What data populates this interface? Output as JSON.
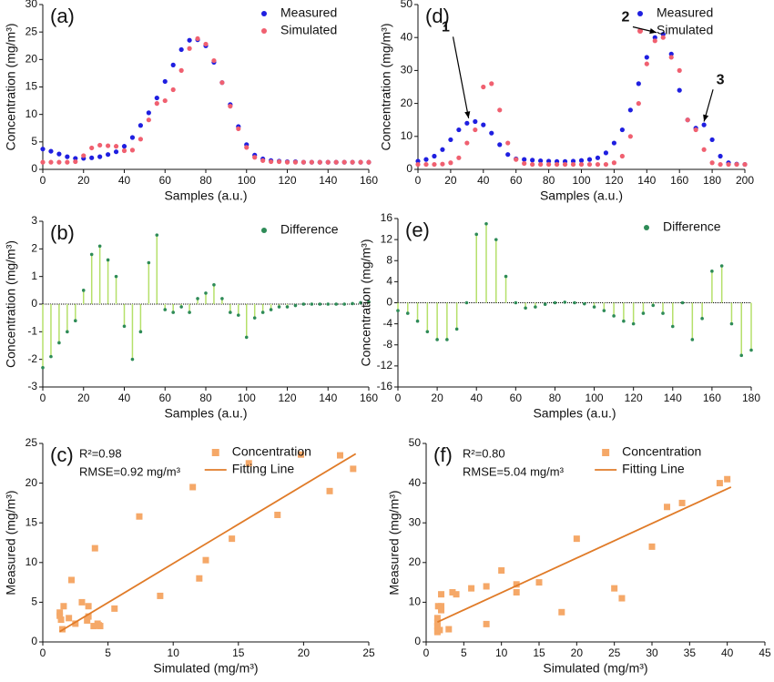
{
  "chart_data": [
    {
      "type": "scatter",
      "label": "(a)",
      "x_label": "Samples (a.u.)",
      "y_label": "Concentration (mg/m³)",
      "x": [
        0,
        4,
        8,
        12,
        16,
        20,
        24,
        28,
        32,
        36,
        40,
        44,
        48,
        52,
        56,
        60,
        64,
        68,
        72,
        76,
        80,
        84,
        88,
        92,
        96,
        100,
        104,
        108,
        112,
        116,
        120,
        124,
        128,
        132,
        136,
        140,
        144,
        148,
        152,
        156,
        160
      ],
      "series": [
        {
          "name": "Measured",
          "color": "#1f1fe0",
          "marker": "circle",
          "values": [
            3.7,
            3.3,
            2.8,
            2.3,
            2.0,
            2.0,
            2.1,
            2.3,
            2.7,
            3.2,
            4.2,
            5.8,
            8.0,
            10.3,
            13.0,
            16.0,
            19.0,
            21.8,
            23.5,
            23.6,
            22.5,
            19.5,
            15.8,
            11.8,
            7.8,
            4.5,
            2.6,
            1.9,
            1.6,
            1.5,
            1.4,
            1.4,
            1.3,
            1.3,
            1.3,
            1.3,
            1.3,
            1.3,
            1.3,
            1.3,
            1.3
          ]
        },
        {
          "name": "Simulated",
          "color": "#f06070",
          "marker": "circle",
          "values": [
            1.3,
            1.3,
            1.3,
            1.3,
            1.4,
            2.5,
            3.9,
            4.4,
            4.3,
            4.2,
            3.4,
            3.5,
            5.5,
            9.0,
            12.0,
            12.5,
            14.5,
            18.0,
            22.0,
            23.8,
            22.8,
            19.8,
            15.8,
            11.5,
            7.4,
            4.0,
            2.2,
            1.6,
            1.4,
            1.4,
            1.3,
            1.3,
            1.3,
            1.3,
            1.3,
            1.3,
            1.3,
            1.3,
            1.3,
            1.3,
            1.3
          ]
        }
      ],
      "xlim": [
        0,
        160
      ],
      "xticks": [
        0,
        20,
        40,
        60,
        80,
        100,
        120,
        140,
        160
      ],
      "ylim": [
        0,
        30
      ],
      "yticks": [
        0,
        5,
        10,
        15,
        20,
        25,
        30
      ],
      "legend": "upper right"
    },
    {
      "type": "stem",
      "label": "(b)",
      "x_label": "Samples (a.u.)",
      "y_label": "Concentration (mg/m³)",
      "x": [
        0,
        4,
        8,
        12,
        16,
        20,
        24,
        28,
        32,
        36,
        40,
        44,
        48,
        52,
        56,
        60,
        64,
        68,
        72,
        76,
        80,
        84,
        88,
        92,
        96,
        100,
        104,
        108,
        112,
        116,
        120,
        124,
        128,
        132,
        136,
        140,
        144,
        148,
        152,
        156,
        160
      ],
      "series": [
        {
          "name": "Difference",
          "color": "#2e8b57",
          "stem_color": "#b5e06a",
          "marker": "circle",
          "values": [
            -2.3,
            -1.9,
            -1.4,
            -1.0,
            -0.6,
            0.5,
            1.8,
            2.1,
            1.6,
            1.0,
            -0.8,
            -2.0,
            -1.0,
            1.5,
            2.5,
            -0.2,
            -0.3,
            -0.1,
            -0.3,
            0.2,
            0.4,
            0.7,
            0.2,
            -0.3,
            -0.4,
            -1.2,
            -0.5,
            -0.3,
            -0.2,
            -0.1,
            -0.1,
            -0.05,
            0,
            0,
            0,
            0,
            0,
            0,
            0.02,
            0.05,
            0.08
          ]
        }
      ],
      "xlim": [
        0,
        160
      ],
      "xticks": [
        0,
        20,
        40,
        60,
        80,
        100,
        120,
        140,
        160
      ],
      "ylim": [
        -3,
        3
      ],
      "yticks": [
        -3,
        -2,
        -1,
        0,
        1,
        2,
        3
      ],
      "legend": "upper right"
    },
    {
      "type": "scatter",
      "label": "(c)",
      "x_label": "Simulated (mg/m³)",
      "y_label": "Measured (mg/m³)",
      "annotations": [
        "R²=0.98",
        "RMSE=0.92 mg/m³"
      ],
      "series": [
        {
          "name": "Concentration",
          "color": "#f5a868",
          "marker": "square",
          "x": [
            1.3,
            1.3,
            1.4,
            2.5,
            3.9,
            4.4,
            4.3,
            4.2,
            3.4,
            3.5,
            5.5,
            9.0,
            12.0,
            12.5,
            14.5,
            18.0,
            22.0,
            23.8,
            22.8,
            19.8,
            15.8,
            11.5,
            7.4,
            4.0,
            2.2,
            1.6,
            3.0,
            2.0,
            1.5,
            3.5
          ],
          "values": [
            3.7,
            3.3,
            2.8,
            2.3,
            2.0,
            2.0,
            2.1,
            2.3,
            2.7,
            3.2,
            4.2,
            5.8,
            8.0,
            10.3,
            13.0,
            16.0,
            19.0,
            21.8,
            23.5,
            23.6,
            22.5,
            19.5,
            15.8,
            11.8,
            7.8,
            4.5,
            5.0,
            3.0,
            1.6,
            4.5
          ]
        },
        {
          "name": "Fitting Line",
          "color": "#e07b28",
          "marker": "line",
          "x": [
            1.3,
            24
          ],
          "values": [
            1.3,
            23.7
          ]
        }
      ],
      "xlim": [
        0,
        25
      ],
      "xticks": [
        0,
        5,
        10,
        15,
        20,
        25
      ],
      "ylim": [
        0,
        25
      ],
      "yticks": [
        0,
        5,
        10,
        15,
        20,
        25
      ],
      "legend": "upper center"
    },
    {
      "type": "scatter",
      "label": "(d)",
      "x_label": "Samples (a.u.)",
      "y_label": "Concentration (mg/m³)",
      "x": [
        0,
        5,
        10,
        15,
        20,
        25,
        30,
        35,
        40,
        45,
        50,
        55,
        60,
        65,
        70,
        75,
        80,
        85,
        90,
        95,
        100,
        105,
        110,
        115,
        120,
        125,
        130,
        135,
        140,
        145,
        150,
        155,
        160,
        165,
        170,
        175,
        180,
        185,
        190,
        195,
        200
      ],
      "series": [
        {
          "name": "Measured",
          "color": "#1f1fe0",
          "marker": "circle",
          "values": [
            2.5,
            3,
            4,
            6,
            9,
            12,
            14,
            14.5,
            13.5,
            11,
            7.5,
            4.5,
            3.2,
            3,
            2.8,
            2.6,
            2.5,
            2.4,
            2.4,
            2.5,
            2.7,
            3,
            3.5,
            5,
            8,
            12,
            18,
            26,
            34,
            40,
            41,
            35,
            24,
            15,
            12.5,
            13.5,
            9,
            4,
            2,
            1.6,
            1.5
          ]
        },
        {
          "name": "Simulated",
          "color": "#f06070",
          "marker": "circle",
          "values": [
            1.5,
            1.5,
            1.5,
            1.6,
            2,
            3.5,
            8,
            12,
            25,
            26,
            18,
            8,
            3,
            1.8,
            1.5,
            1.5,
            1.5,
            1.5,
            1.5,
            1.5,
            1.5,
            1.5,
            1.5,
            1.5,
            2,
            4,
            10,
            20,
            32,
            39,
            40,
            34,
            30,
            15,
            12,
            6,
            2,
            1.5,
            1.5,
            1.5,
            1.5
          ]
        }
      ],
      "annotations": [
        "1",
        "2",
        "3"
      ],
      "xlim": [
        0,
        200
      ],
      "xticks": [
        0,
        20,
        40,
        60,
        80,
        100,
        120,
        140,
        160,
        180,
        200
      ],
      "ylim": [
        0,
        50
      ],
      "yticks": [
        0,
        10,
        20,
        30,
        40,
        50
      ],
      "legend": "upper right"
    },
    {
      "type": "stem",
      "label": "(e)",
      "x_label": "Samples (a.u.)",
      "y_label": "Concentration (mg/m³)",
      "x": [
        0,
        5,
        10,
        15,
        20,
        25,
        30,
        35,
        40,
        45,
        50,
        55,
        60,
        65,
        70,
        75,
        80,
        85,
        90,
        95,
        100,
        105,
        110,
        115,
        120,
        125,
        130,
        135,
        140,
        145,
        150,
        155,
        160,
        165,
        170,
        175,
        180
      ],
      "series": [
        {
          "name": "Difference",
          "color": "#2e8b57",
          "stem_color": "#b5e06a",
          "marker": "circle",
          "values": [
            -1.5,
            -2,
            -3.5,
            -5.5,
            -7,
            -7,
            -5,
            0,
            13,
            15,
            12,
            5,
            0,
            -1,
            -0.8,
            -0.3,
            0,
            0.1,
            0,
            -0.2,
            -0.8,
            -1.5,
            -2.5,
            -3.5,
            -4,
            -2,
            -0.5,
            -2,
            -4.5,
            0,
            -7,
            -3,
            6,
            7,
            -4,
            -10,
            -9
          ]
        }
      ],
      "xlim": [
        0,
        180
      ],
      "xticks": [
        0,
        20,
        40,
        60,
        80,
        100,
        120,
        140,
        160,
        180
      ],
      "ylim": [
        -16,
        16
      ],
      "yticks": [
        -16,
        -12,
        -8,
        -4,
        0,
        4,
        8,
        12,
        16
      ],
      "legend": "upper right"
    },
    {
      "type": "scatter",
      "label": "(f)",
      "x_label": "Simulated (mg/m³)",
      "y_label": "Measured (mg/m³)",
      "annotations": [
        "R²=0.80",
        "RMSE=5.04 mg/m³"
      ],
      "series": [
        {
          "name": "Concentration",
          "color": "#f5a868",
          "marker": "square",
          "x": [
            1.5,
            1.5,
            1.5,
            1.6,
            2,
            3.5,
            8,
            12,
            25,
            26,
            18,
            8,
            3,
            1.8,
            1.5,
            1.5,
            2,
            4,
            10,
            20,
            32,
            39,
            40,
            34,
            30,
            15,
            12,
            6,
            2,
            1.5
          ],
          "values": [
            2.5,
            4,
            6,
            9,
            12,
            12.5,
            14,
            14.5,
            13.5,
            11,
            7.5,
            4.5,
            3.2,
            3,
            2.8,
            5,
            8,
            12,
            18,
            26,
            34,
            40,
            41,
            35,
            24,
            15,
            12.5,
            13.5,
            9,
            4
          ]
        },
        {
          "name": "Fitting Line",
          "color": "#e07b28",
          "marker": "line",
          "x": [
            1.5,
            40.5
          ],
          "values": [
            5,
            39
          ]
        }
      ],
      "xlim": [
        0,
        45
      ],
      "xticks": [
        0,
        5,
        10,
        15,
        20,
        25,
        30,
        35,
        40,
        45
      ],
      "ylim": [
        0,
        50
      ],
      "yticks": [
        0,
        10,
        20,
        30,
        40,
        50
      ],
      "legend": "upper center"
    }
  ]
}
